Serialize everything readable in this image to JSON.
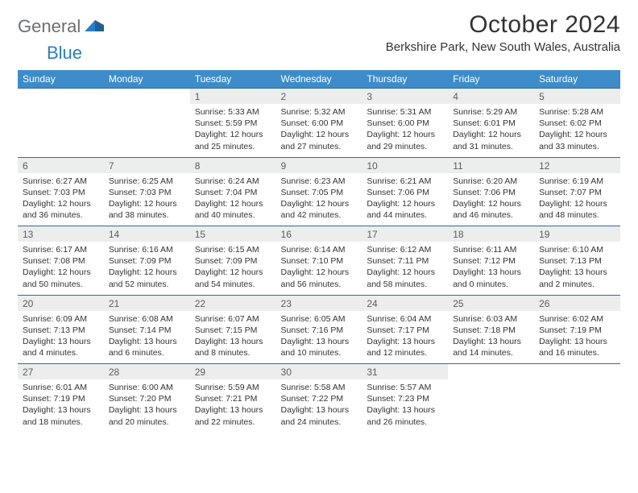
{
  "brand": {
    "part1": "General",
    "part2": "Blue"
  },
  "title": "October 2024",
  "location": "Berkshire Park, New South Wales, Australia",
  "colors": {
    "header_bg": "#3d8cc9",
    "row_rule": "#2f6aa0",
    "daynum_bg": "#eceded",
    "logo_gray": "#6b6f73",
    "logo_blue": "#2a7ec2"
  },
  "day_headers": [
    "Sunday",
    "Monday",
    "Tuesday",
    "Wednesday",
    "Thursday",
    "Friday",
    "Saturday"
  ],
  "weeks": [
    [
      null,
      null,
      {
        "n": "1",
        "sunrise": "5:33 AM",
        "sunset": "5:59 PM",
        "daylight": "12 hours and 25 minutes."
      },
      {
        "n": "2",
        "sunrise": "5:32 AM",
        "sunset": "6:00 PM",
        "daylight": "12 hours and 27 minutes."
      },
      {
        "n": "3",
        "sunrise": "5:31 AM",
        "sunset": "6:00 PM",
        "daylight": "12 hours and 29 minutes."
      },
      {
        "n": "4",
        "sunrise": "5:29 AM",
        "sunset": "6:01 PM",
        "daylight": "12 hours and 31 minutes."
      },
      {
        "n": "5",
        "sunrise": "5:28 AM",
        "sunset": "6:02 PM",
        "daylight": "12 hours and 33 minutes."
      }
    ],
    [
      {
        "n": "6",
        "sunrise": "6:27 AM",
        "sunset": "7:03 PM",
        "daylight": "12 hours and 36 minutes."
      },
      {
        "n": "7",
        "sunrise": "6:25 AM",
        "sunset": "7:03 PM",
        "daylight": "12 hours and 38 minutes."
      },
      {
        "n": "8",
        "sunrise": "6:24 AM",
        "sunset": "7:04 PM",
        "daylight": "12 hours and 40 minutes."
      },
      {
        "n": "9",
        "sunrise": "6:23 AM",
        "sunset": "7:05 PM",
        "daylight": "12 hours and 42 minutes."
      },
      {
        "n": "10",
        "sunrise": "6:21 AM",
        "sunset": "7:06 PM",
        "daylight": "12 hours and 44 minutes."
      },
      {
        "n": "11",
        "sunrise": "6:20 AM",
        "sunset": "7:06 PM",
        "daylight": "12 hours and 46 minutes."
      },
      {
        "n": "12",
        "sunrise": "6:19 AM",
        "sunset": "7:07 PM",
        "daylight": "12 hours and 48 minutes."
      }
    ],
    [
      {
        "n": "13",
        "sunrise": "6:17 AM",
        "sunset": "7:08 PM",
        "daylight": "12 hours and 50 minutes."
      },
      {
        "n": "14",
        "sunrise": "6:16 AM",
        "sunset": "7:09 PM",
        "daylight": "12 hours and 52 minutes."
      },
      {
        "n": "15",
        "sunrise": "6:15 AM",
        "sunset": "7:09 PM",
        "daylight": "12 hours and 54 minutes."
      },
      {
        "n": "16",
        "sunrise": "6:14 AM",
        "sunset": "7:10 PM",
        "daylight": "12 hours and 56 minutes."
      },
      {
        "n": "17",
        "sunrise": "6:12 AM",
        "sunset": "7:11 PM",
        "daylight": "12 hours and 58 minutes."
      },
      {
        "n": "18",
        "sunrise": "6:11 AM",
        "sunset": "7:12 PM",
        "daylight": "13 hours and 0 minutes."
      },
      {
        "n": "19",
        "sunrise": "6:10 AM",
        "sunset": "7:13 PM",
        "daylight": "13 hours and 2 minutes."
      }
    ],
    [
      {
        "n": "20",
        "sunrise": "6:09 AM",
        "sunset": "7:13 PM",
        "daylight": "13 hours and 4 minutes."
      },
      {
        "n": "21",
        "sunrise": "6:08 AM",
        "sunset": "7:14 PM",
        "daylight": "13 hours and 6 minutes."
      },
      {
        "n": "22",
        "sunrise": "6:07 AM",
        "sunset": "7:15 PM",
        "daylight": "13 hours and 8 minutes."
      },
      {
        "n": "23",
        "sunrise": "6:05 AM",
        "sunset": "7:16 PM",
        "daylight": "13 hours and 10 minutes."
      },
      {
        "n": "24",
        "sunrise": "6:04 AM",
        "sunset": "7:17 PM",
        "daylight": "13 hours and 12 minutes."
      },
      {
        "n": "25",
        "sunrise": "6:03 AM",
        "sunset": "7:18 PM",
        "daylight": "13 hours and 14 minutes."
      },
      {
        "n": "26",
        "sunrise": "6:02 AM",
        "sunset": "7:19 PM",
        "daylight": "13 hours and 16 minutes."
      }
    ],
    [
      {
        "n": "27",
        "sunrise": "6:01 AM",
        "sunset": "7:19 PM",
        "daylight": "13 hours and 18 minutes."
      },
      {
        "n": "28",
        "sunrise": "6:00 AM",
        "sunset": "7:20 PM",
        "daylight": "13 hours and 20 minutes."
      },
      {
        "n": "29",
        "sunrise": "5:59 AM",
        "sunset": "7:21 PM",
        "daylight": "13 hours and 22 minutes."
      },
      {
        "n": "30",
        "sunrise": "5:58 AM",
        "sunset": "7:22 PM",
        "daylight": "13 hours and 24 minutes."
      },
      {
        "n": "31",
        "sunrise": "5:57 AM",
        "sunset": "7:23 PM",
        "daylight": "13 hours and 26 minutes."
      },
      null,
      null
    ]
  ],
  "labels": {
    "sunrise_prefix": "Sunrise: ",
    "sunset_prefix": "Sunset: ",
    "daylight_prefix": "Daylight: "
  }
}
